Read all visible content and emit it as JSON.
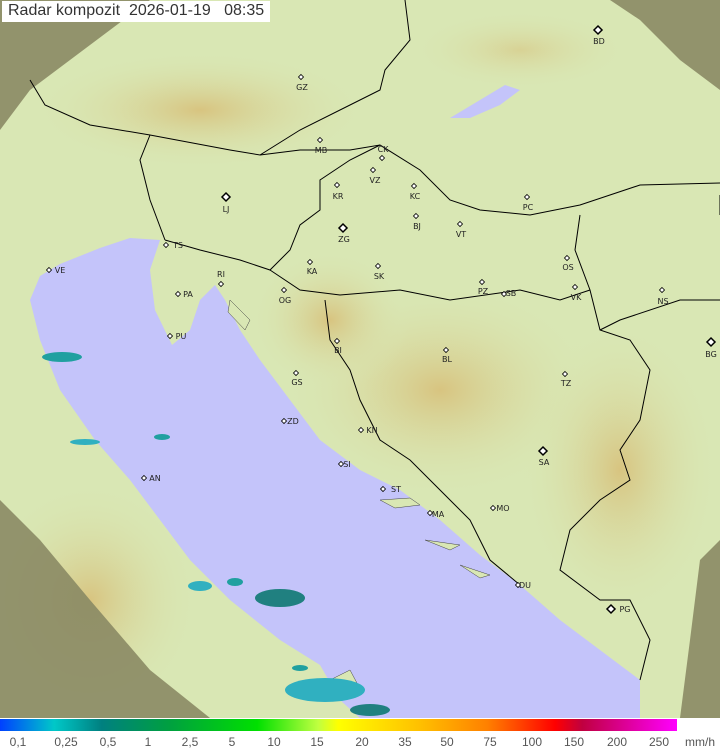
{
  "title": "Radar kompozit  2026-01-19   08:35",
  "colors": {
    "sea": "#c4c4fa",
    "land_plain": "#d9e7b4",
    "land_mountain": "#dcc98c",
    "out_of_range": "#8a8a64",
    "border": "#000000"
  },
  "legend": {
    "ticks": [
      "0,1",
      "0,25",
      "0,5",
      "1",
      "2,5",
      "5",
      "10",
      "15",
      "20",
      "35",
      "50",
      "75",
      "100",
      "150",
      "200",
      "250"
    ],
    "unit": "mm/h"
  },
  "stations": [
    "GZ",
    "BD",
    "MB",
    "CK",
    "VZ",
    "KR",
    "KC",
    "PC",
    "LJ",
    "BJ",
    "VT",
    "ZG",
    "TS",
    "VE",
    "RI",
    "KA",
    "SK",
    "OS",
    "PA",
    "OG",
    "PZ",
    "SB",
    "VK",
    "NS",
    "PU",
    "BI",
    "BL",
    "BG",
    "GS",
    "TZ",
    "ZD",
    "KN",
    "SA",
    "SI",
    "AN",
    "ST",
    "MO",
    "MA",
    "DU",
    "PG"
  ]
}
